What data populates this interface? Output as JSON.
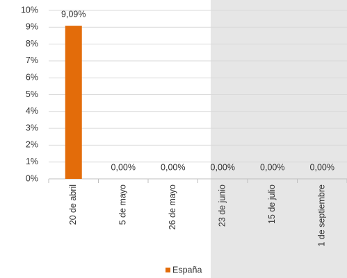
{
  "chart_data": {
    "type": "bar",
    "categories": [
      "20 de abril",
      "5 de mayo",
      "26 de mayo",
      "23 de junio",
      "15 de julio",
      "1 de septiembre"
    ],
    "series": [
      {
        "name": "España",
        "color": "#e36c0a",
        "values": [
          9.09,
          0,
          0,
          0,
          0,
          0
        ],
        "value_labels": [
          "9,09%",
          "0,00%",
          "0,00%",
          "0,00%",
          "0,00%",
          "0,00%"
        ]
      }
    ],
    "ylim": [
      0,
      10
    ],
    "yticks": [
      {
        "value": 0,
        "label": "0%"
      },
      {
        "value": 1,
        "label": "1%"
      },
      {
        "value": 2,
        "label": "2%"
      },
      {
        "value": 3,
        "label": "3%"
      },
      {
        "value": 4,
        "label": "4%"
      },
      {
        "value": 5,
        "label": "5%"
      },
      {
        "value": 6,
        "label": "6%"
      },
      {
        "value": 7,
        "label": "7%"
      },
      {
        "value": 8,
        "label": "8%"
      },
      {
        "value": 9,
        "label": "9%"
      },
      {
        "value": 10,
        "label": "10%"
      }
    ],
    "grid": true,
    "legend": "bottom"
  }
}
